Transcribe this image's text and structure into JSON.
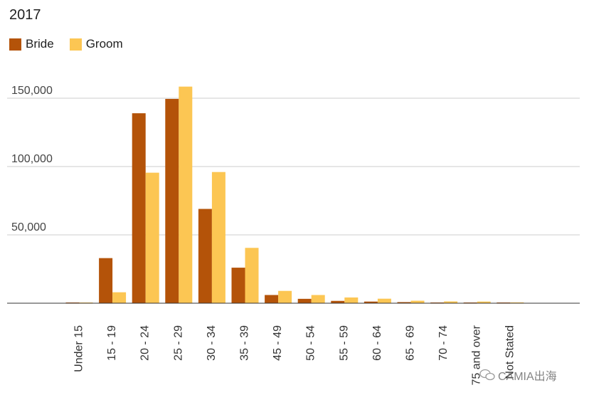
{
  "chart_data": {
    "type": "bar",
    "title": "2017",
    "categories": [
      "Under 15",
      "15 - 19",
      "20 - 24",
      "25 - 29",
      "30 - 34",
      "35 - 39",
      "45 - 49",
      "50 - 54",
      "55 - 59",
      "60 - 64",
      "65 - 69",
      "70 - 74",
      "75 and over",
      "Not Stated"
    ],
    "series": [
      {
        "name": "Bride",
        "color": "#b45309",
        "values": [
          400,
          33000,
          139000,
          149500,
          69000,
          26000,
          6000,
          3200,
          1700,
          1200,
          800,
          500,
          400,
          400
        ]
      },
      {
        "name": "Groom",
        "color": "#fcc653",
        "values": [
          200,
          8000,
          95500,
          158500,
          96000,
          40500,
          9000,
          6000,
          4200,
          3300,
          1800,
          1300,
          1200,
          600
        ]
      }
    ],
    "y_ticks": [
      {
        "value": 50000,
        "label": "50,000"
      },
      {
        "value": 100000,
        "label": "100,000"
      },
      {
        "value": 150000,
        "label": "150,000"
      }
    ],
    "ylim": [
      0,
      150000
    ],
    "grid": true,
    "legend_position": "top-left"
  },
  "watermark": {
    "text": "CAMIA出海"
  }
}
